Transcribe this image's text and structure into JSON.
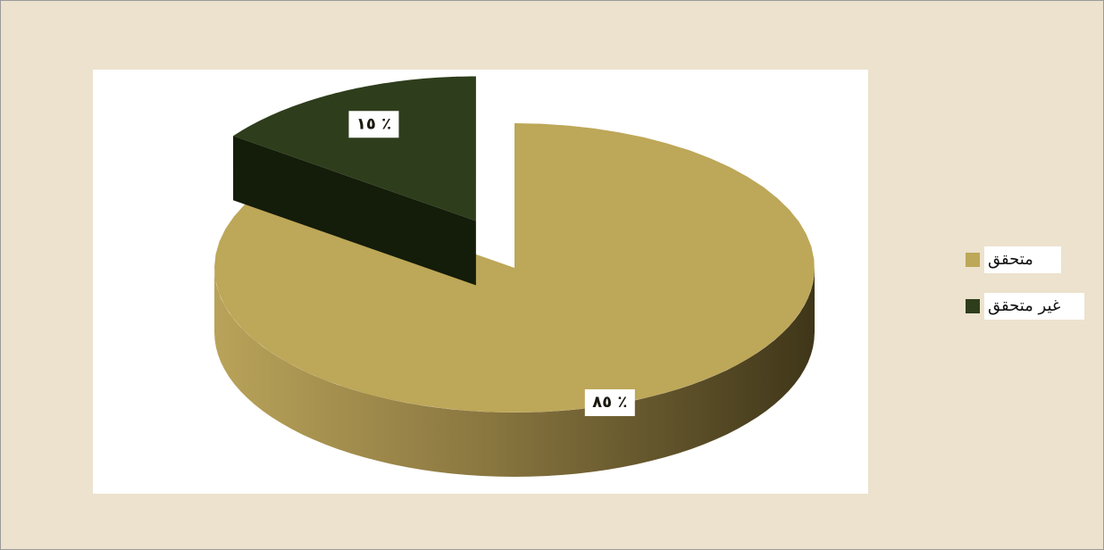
{
  "chart_data": {
    "type": "pie",
    "categories": [
      "متحقق",
      "غير متحقق"
    ],
    "values": [
      85,
      15
    ],
    "value_labels": [
      "٨٥ ٪",
      "١٥ ٪"
    ],
    "colors": [
      "#bda758",
      "#2e3d1b"
    ],
    "legend": "right"
  }
}
